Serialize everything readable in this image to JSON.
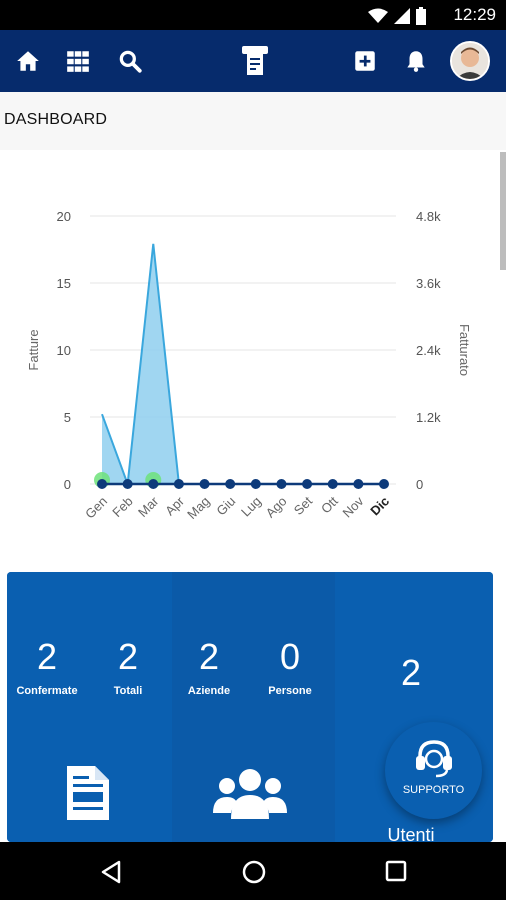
{
  "status_bar": {
    "time": "12:29"
  },
  "app_bar": {
    "icons": [
      "home-icon",
      "grid-icon",
      "search-icon",
      "printer-logo-icon",
      "add-icon",
      "bell-icon"
    ]
  },
  "page": {
    "title": "DASHBOARD"
  },
  "chart_data": {
    "type": "area",
    "categories": [
      "Gen",
      "Feb",
      "Mar",
      "Apr",
      "Mag",
      "Giu",
      "Lug",
      "Ago",
      "Set",
      "Ott",
      "Nov",
      "Dic"
    ],
    "ylabel": "Fatture",
    "y2label": "Fatturato",
    "ylim": [
      0,
      20
    ],
    "y2lim": [
      0,
      4800
    ],
    "yticks": [
      "0",
      "5",
      "10",
      "15",
      "20"
    ],
    "y2ticks": [
      "0",
      "1.2k",
      "2.4k",
      "3.6k",
      "4.8k"
    ],
    "series": [
      {
        "axis": "right",
        "values": [
          1250,
          0,
          4300,
          0,
          0,
          0,
          0,
          0,
          0,
          0,
          0,
          0
        ],
        "color": "#3aa7dd"
      },
      {
        "axis": "left",
        "values": [
          0,
          0,
          0,
          0,
          0,
          0,
          0,
          0,
          0,
          0,
          0,
          0
        ],
        "color": "#0d3a7a"
      }
    ],
    "highlighted": [
      "Gen",
      "Mar"
    ],
    "bold_category": "Dic",
    "grid": true
  },
  "stats": {
    "items": [
      {
        "value": "2",
        "label": "Confermate"
      },
      {
        "value": "2",
        "label": "Totali"
      },
      {
        "value": "2",
        "label": "Aziende"
      },
      {
        "value": "0",
        "label": "Persone"
      },
      {
        "value": "2",
        "label": "Utenti"
      }
    ]
  },
  "support": {
    "label": "SUPPORTO"
  },
  "colors": {
    "primary_dark": "#062b6c",
    "primary": "#0a5fb0",
    "area": "#3aa7dd",
    "highlight": "#6de27a"
  }
}
